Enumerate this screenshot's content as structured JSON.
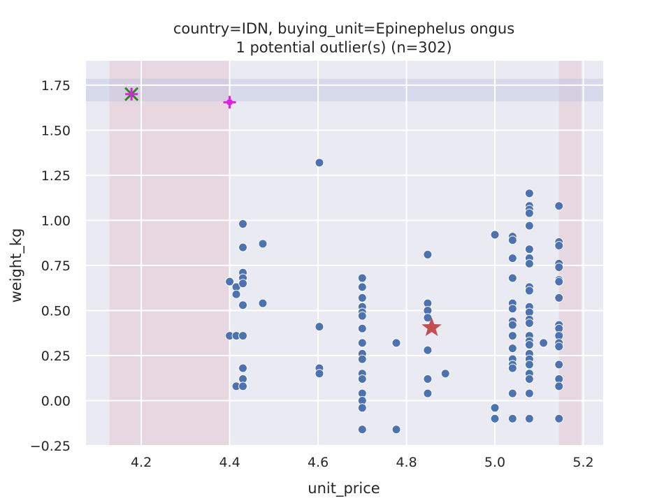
{
  "chart_data": {
    "type": "scatter",
    "title": "country=IDN, buying_unit=Epinephelus ongus",
    "subtitle": "1 potential outlier(s) (n=302)",
    "xlabel": "unit_price",
    "ylabel": "weight_kg",
    "xlim": [
      4.075,
      5.245
    ],
    "ylim": [
      -0.25,
      1.885
    ],
    "x_ticks": [
      4.2,
      4.4,
      4.6,
      4.8,
      5.0,
      5.2
    ],
    "x_tick_labels": [
      "4.2",
      "4.4",
      "4.6",
      "4.8",
      "5.0",
      "5.2"
    ],
    "y_ticks": [
      -0.25,
      0.0,
      0.25,
      0.5,
      0.75,
      1.0,
      1.25,
      1.5,
      1.75
    ],
    "y_tick_labels": [
      "−0.25",
      "0.00",
      "0.25",
      "0.50",
      "0.75",
      "1.00",
      "1.25",
      "1.50",
      "1.75"
    ],
    "grid": true,
    "shaded_regions": {
      "x_bands": [
        [
          4.128,
          4.4
        ],
        [
          5.145,
          5.195
        ]
      ],
      "y_bands": [
        [
          1.66,
          1.785
        ]
      ],
      "x_band_color": "#e0b4c0",
      "y_band_color": "#b4bce0"
    },
    "series": [
      {
        "marker": "circle",
        "color": "#4c72b0",
        "points": [
          [
            4.4,
            0.66
          ],
          [
            4.4,
            0.36
          ],
          [
            4.415,
            0.63
          ],
          [
            4.415,
            0.59
          ],
          [
            4.415,
            0.36
          ],
          [
            4.415,
            0.08
          ],
          [
            4.43,
            0.98
          ],
          [
            4.43,
            0.85
          ],
          [
            4.43,
            0.71
          ],
          [
            4.43,
            0.68
          ],
          [
            4.43,
            0.65
          ],
          [
            4.43,
            0.53
          ],
          [
            4.43,
            0.36
          ],
          [
            4.43,
            0.18
          ],
          [
            4.43,
            0.12
          ],
          [
            4.43,
            0.08
          ],
          [
            4.475,
            0.87
          ],
          [
            4.475,
            0.54
          ],
          [
            4.603,
            1.32
          ],
          [
            4.603,
            0.41
          ],
          [
            4.603,
            0.18
          ],
          [
            4.603,
            0.15
          ],
          [
            4.7,
            0.68
          ],
          [
            4.7,
            0.63
          ],
          [
            4.7,
            0.57
          ],
          [
            4.7,
            0.52
          ],
          [
            4.7,
            0.49
          ],
          [
            4.7,
            0.47
          ],
          [
            4.7,
            0.4
          ],
          [
            4.7,
            0.32
          ],
          [
            4.7,
            0.26
          ],
          [
            4.7,
            0.23
          ],
          [
            4.7,
            0.15
          ],
          [
            4.7,
            0.12
          ],
          [
            4.7,
            0.04
          ],
          [
            4.7,
            0.0
          ],
          [
            4.7,
            -0.04
          ],
          [
            4.7,
            -0.16
          ],
          [
            4.777,
            0.32
          ],
          [
            4.777,
            -0.16
          ],
          [
            4.848,
            0.81
          ],
          [
            4.848,
            0.54
          ],
          [
            4.848,
            0.5
          ],
          [
            4.848,
            0.46
          ],
          [
            4.848,
            0.28
          ],
          [
            4.848,
            0.12
          ],
          [
            4.848,
            0.04
          ],
          [
            4.888,
            0.15
          ],
          [
            5.0,
            0.92
          ],
          [
            5.0,
            -0.04
          ],
          [
            5.0,
            -0.1
          ],
          [
            5.04,
            0.91
          ],
          [
            5.04,
            0.89
          ],
          [
            5.04,
            0.79
          ],
          [
            5.04,
            0.68
          ],
          [
            5.04,
            0.54
          ],
          [
            5.04,
            0.51
          ],
          [
            5.04,
            0.44
          ],
          [
            5.04,
            0.42
          ],
          [
            5.04,
            0.36
          ],
          [
            5.04,
            0.29
          ],
          [
            5.04,
            0.23
          ],
          [
            5.04,
            0.2
          ],
          [
            5.04,
            0.18
          ],
          [
            5.04,
            0.04
          ],
          [
            5.04,
            -0.1
          ],
          [
            5.078,
            1.15
          ],
          [
            5.078,
            1.08
          ],
          [
            5.078,
            1.06
          ],
          [
            5.078,
            1.04
          ],
          [
            5.078,
            0.97
          ],
          [
            5.078,
            0.84
          ],
          [
            5.078,
            0.79
          ],
          [
            5.078,
            0.76
          ],
          [
            5.078,
            0.63
          ],
          [
            5.078,
            0.61
          ],
          [
            5.078,
            0.52
          ],
          [
            5.078,
            0.49
          ],
          [
            5.078,
            0.45
          ],
          [
            5.078,
            0.43
          ],
          [
            5.078,
            0.36
          ],
          [
            5.078,
            0.33
          ],
          [
            5.078,
            0.31
          ],
          [
            5.078,
            0.26
          ],
          [
            5.078,
            0.23
          ],
          [
            5.078,
            0.2
          ],
          [
            5.078,
            0.15
          ],
          [
            5.078,
            0.12
          ],
          [
            5.078,
            0.04
          ],
          [
            5.078,
            -0.1
          ],
          [
            5.11,
            0.32
          ],
          [
            5.145,
            1.08
          ],
          [
            5.145,
            0.88
          ],
          [
            5.145,
            0.86
          ],
          [
            5.145,
            0.76
          ],
          [
            5.145,
            0.74
          ],
          [
            5.145,
            0.67
          ],
          [
            5.145,
            0.66
          ],
          [
            5.145,
            0.57
          ],
          [
            5.145,
            0.42
          ],
          [
            5.145,
            0.4
          ],
          [
            5.145,
            0.36
          ],
          [
            5.145,
            0.32
          ],
          [
            5.145,
            0.3
          ],
          [
            5.145,
            0.2
          ],
          [
            5.145,
            0.12
          ],
          [
            5.145,
            0.08
          ],
          [
            5.145,
            -0.1
          ]
        ]
      },
      {
        "marker": "star",
        "color": "#c44e52",
        "points": [
          [
            4.857,
            0.405
          ]
        ]
      },
      {
        "marker": "x",
        "color": "#2e8b22",
        "points": [
          [
            4.178,
            1.7
          ]
        ]
      },
      {
        "marker": "plus",
        "color": "#e020e0",
        "points": [
          [
            4.178,
            1.7
          ],
          [
            4.4,
            1.655
          ]
        ]
      },
      {
        "marker": "dot",
        "color": "#e020e0",
        "points": [
          [
            4.4,
            1.655
          ]
        ]
      }
    ]
  },
  "colors": {
    "plot_background": "#eaeaf2",
    "grid": "#ffffff",
    "text": "#262626"
  }
}
